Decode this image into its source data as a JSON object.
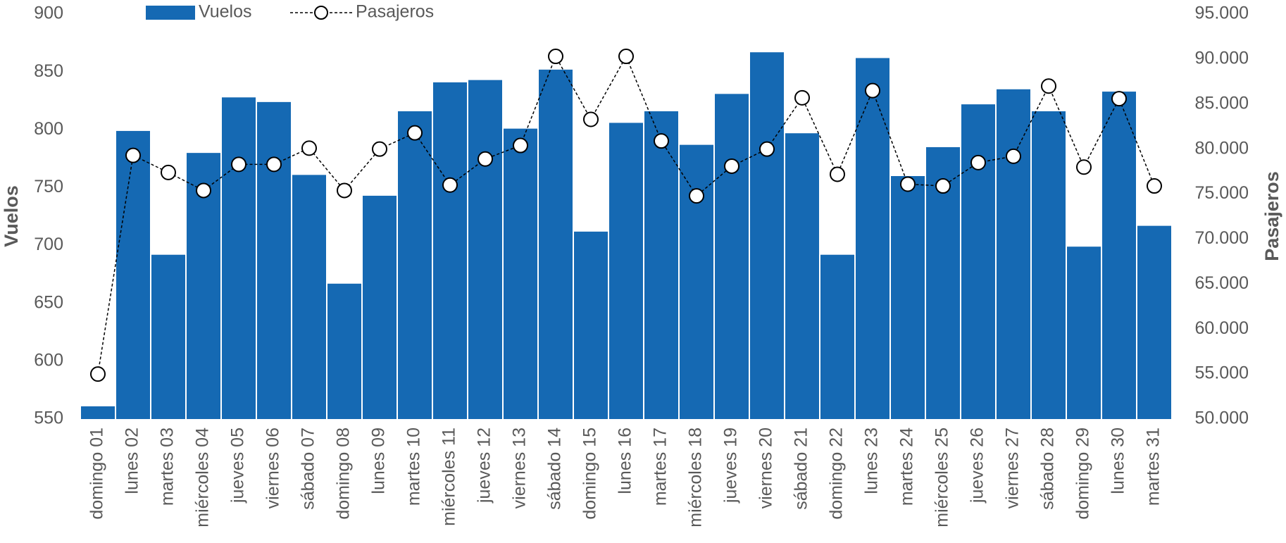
{
  "chart_data": {
    "type": "bar-line",
    "categories": [
      "domingo 01",
      "lunes 02",
      "martes 03",
      "miércoles 04",
      "jueves 05",
      "viernes 06",
      "sábado 07",
      "domingo 08",
      "lunes 09",
      "martes 10",
      "miércoles 11",
      "jueves 12",
      "viernes 13",
      "sábado 14",
      "domingo 15",
      "lunes 16",
      "martes 17",
      "miércoles 18",
      "jueves 19",
      "viernes 20",
      "sábado 21",
      "domingo 22",
      "lunes 23",
      "martes 24",
      "miércoles 25",
      "jueves 26",
      "viernes 27",
      "sábado 28",
      "domingo 29",
      "lunes 30",
      "martes 31"
    ],
    "series": [
      {
        "name": "Vuelos",
        "type": "bar",
        "color": "#1569b3",
        "values": [
          561,
          799,
          692,
          780,
          828,
          824,
          761,
          667,
          743,
          816,
          841,
          843,
          801,
          852,
          712,
          806,
          816,
          787,
          831,
          867,
          797,
          692,
          862,
          760,
          785,
          822,
          835,
          816,
          699,
          833,
          717
        ]
      },
      {
        "name": "Pasajeros",
        "type": "line",
        "axis": "y2",
        "color": "#000000",
        "values": [
          55000,
          79300,
          77400,
          75400,
          78300,
          78300,
          80100,
          75400,
          80000,
          81800,
          76000,
          78900,
          80400,
          90300,
          83300,
          90300,
          80900,
          74800,
          78100,
          80000,
          85700,
          77200,
          86500,
          76100,
          75900,
          78500,
          79200,
          87000,
          78000,
          85600,
          75900
        ]
      }
    ],
    "ylabel": "Vuelos",
    "y2label": "Pasajeros",
    "ylim": [
      550,
      900
    ],
    "yticks": [
      550,
      600,
      650,
      700,
      750,
      800,
      850,
      900
    ],
    "y2lim": [
      50000,
      95000
    ],
    "y2ticks": [
      {
        "value": 50000,
        "label": "50.000"
      },
      {
        "value": 55000,
        "label": "55.000"
      },
      {
        "value": 60000,
        "label": "60.000"
      },
      {
        "value": 65000,
        "label": "65.000"
      },
      {
        "value": 70000,
        "label": "70.000"
      },
      {
        "value": 75000,
        "label": "75.000"
      },
      {
        "value": 80000,
        "label": "80.000"
      },
      {
        "value": 85000,
        "label": "85.000"
      },
      {
        "value": 90000,
        "label": "90.000"
      },
      {
        "value": 95000,
        "label": "95.000"
      }
    ],
    "legend": "top",
    "grid": false
  }
}
